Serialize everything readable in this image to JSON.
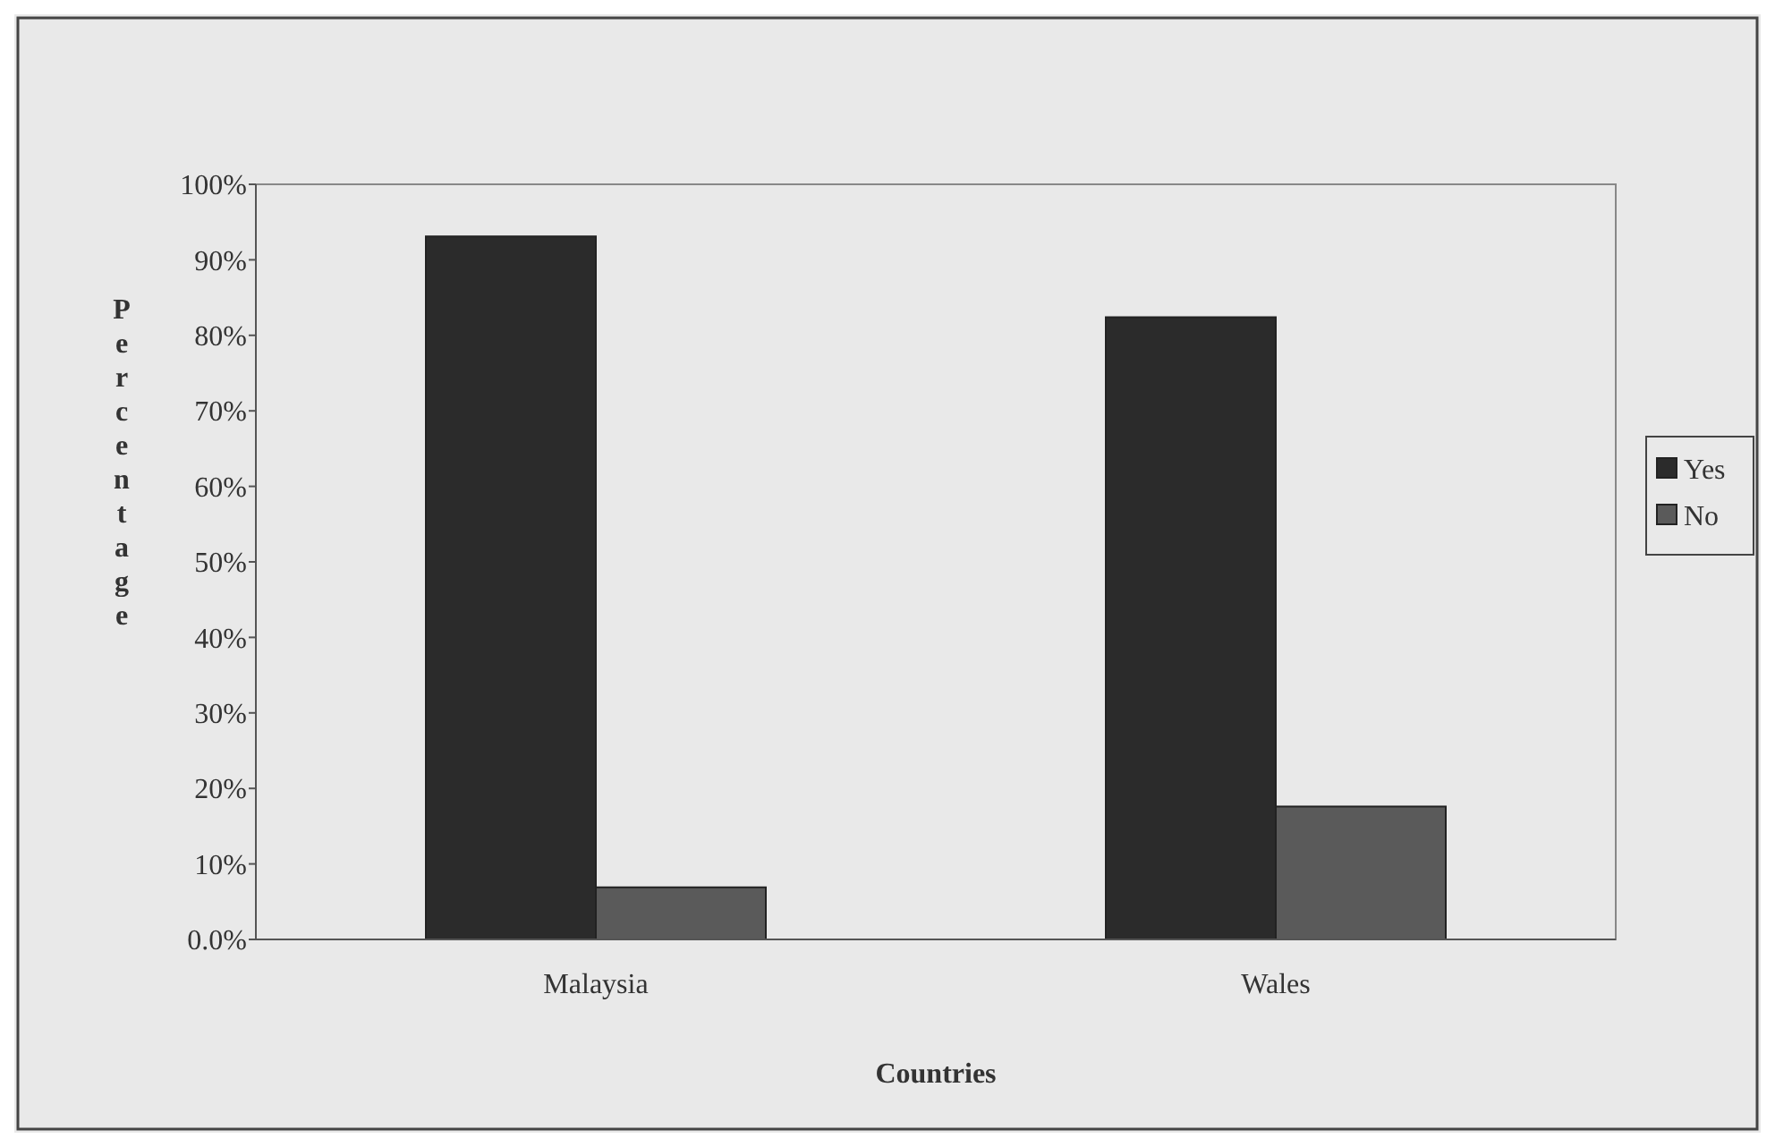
{
  "chart_data": {
    "type": "bar",
    "xlabel": "Countries",
    "ylabel": "Percentage",
    "categories": [
      "Malaysia",
      "Wales"
    ],
    "series": [
      {
        "name": "Yes",
        "color": "#2b2b2b",
        "values": [
          93.1,
          82.4
        ]
      },
      {
        "name": "No",
        "color": "#5a5a5a",
        "values": [
          6.9,
          17.6
        ]
      }
    ],
    "ylim": [
      0,
      100
    ],
    "yticks": [
      {
        "value": 0,
        "label": "0.0%"
      },
      {
        "value": 10,
        "label": "10%"
      },
      {
        "value": 20,
        "label": "20%"
      },
      {
        "value": 30,
        "label": "30%"
      },
      {
        "value": 40,
        "label": "40%"
      },
      {
        "value": 50,
        "label": "50%"
      },
      {
        "value": 60,
        "label": "60%"
      },
      {
        "value": 70,
        "label": "70%"
      },
      {
        "value": 80,
        "label": "80%"
      },
      {
        "value": 90,
        "label": "90%"
      },
      {
        "value": 100,
        "label": "100%"
      }
    ],
    "grid": false,
    "legend": "right"
  }
}
